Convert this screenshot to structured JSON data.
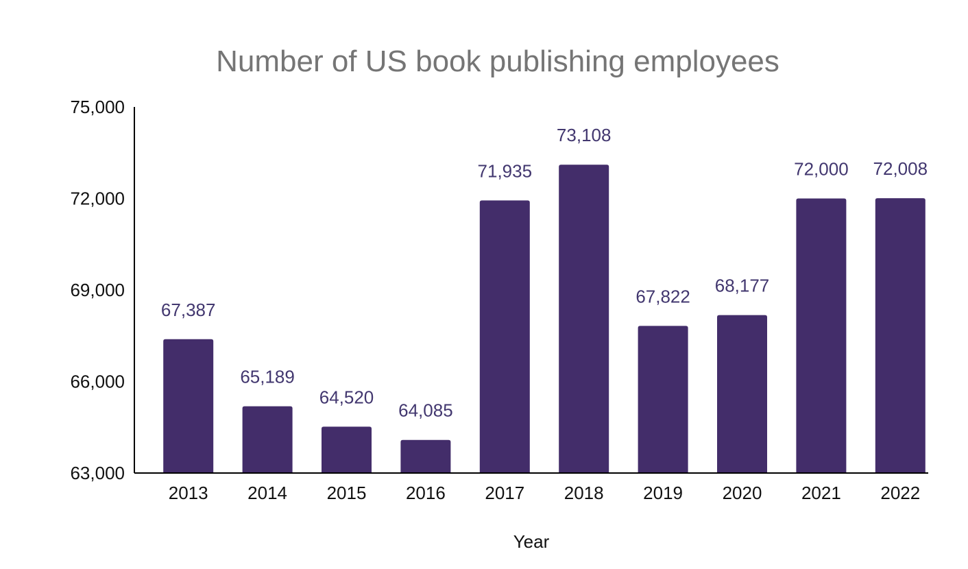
{
  "chart_data": {
    "type": "bar",
    "title": "Number of US book publishing employees",
    "xlabel": "Year",
    "ylabel": "",
    "categories": [
      "2013",
      "2014",
      "2015",
      "2016",
      "2017",
      "2018",
      "2019",
      "2020",
      "2021",
      "2022"
    ],
    "values": [
      67387,
      65189,
      64520,
      64085,
      71935,
      73108,
      67822,
      68177,
      72000,
      72008
    ],
    "data_labels": [
      "67,387",
      "65,189",
      "64,520",
      "64,085",
      "71,935",
      "73,108",
      "67,822",
      "68,177",
      "72,000",
      "72,008"
    ],
    "ylim": [
      63000,
      75000
    ],
    "yticks": [
      63000,
      66000,
      69000,
      72000,
      75000
    ],
    "ytick_labels": [
      "63,000",
      "66,000",
      "69,000",
      "72,000",
      "75,000"
    ],
    "grid": false,
    "legend": "none",
    "bar_color": "#432D6A",
    "label_color": "#42376F"
  }
}
